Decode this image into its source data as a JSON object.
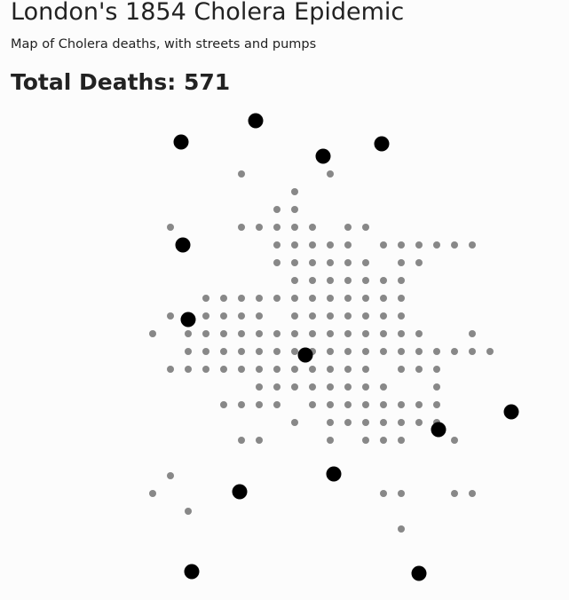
{
  "header": {
    "title": "London's 1854 Cholera Epidemic",
    "subtitle": "Map of Cholera deaths, with streets and pumps",
    "total_label": "Total Deaths:",
    "total_value": "571"
  },
  "map": {
    "colors": {
      "background": "#fcfcfc",
      "death_marker": "#888888",
      "pump_marker": "#000000"
    },
    "death_grid_cells": [
      [
        13,
        2
      ],
      [
        18,
        2
      ],
      [
        16,
        3
      ],
      [
        15,
        4
      ],
      [
        16,
        4
      ],
      [
        9,
        5
      ],
      [
        13,
        5
      ],
      [
        14,
        5
      ],
      [
        15,
        5
      ],
      [
        16,
        5
      ],
      [
        17,
        5
      ],
      [
        19,
        5
      ],
      [
        20,
        5
      ],
      [
        15,
        6
      ],
      [
        16,
        6
      ],
      [
        17,
        6
      ],
      [
        18,
        6
      ],
      [
        19,
        6
      ],
      [
        21,
        6
      ],
      [
        22,
        6
      ],
      [
        23,
        6
      ],
      [
        24,
        6
      ],
      [
        25,
        6
      ],
      [
        26,
        6
      ],
      [
        15,
        7
      ],
      [
        16,
        7
      ],
      [
        17,
        7
      ],
      [
        18,
        7
      ],
      [
        19,
        7
      ],
      [
        20,
        7
      ],
      [
        22,
        7
      ],
      [
        23,
        7
      ],
      [
        16,
        8
      ],
      [
        17,
        8
      ],
      [
        18,
        8
      ],
      [
        19,
        8
      ],
      [
        20,
        8
      ],
      [
        21,
        8
      ],
      [
        22,
        8
      ],
      [
        11,
        9
      ],
      [
        12,
        9
      ],
      [
        13,
        9
      ],
      [
        14,
        9
      ],
      [
        15,
        9
      ],
      [
        16,
        9
      ],
      [
        17,
        9
      ],
      [
        18,
        9
      ],
      [
        19,
        9
      ],
      [
        20,
        9
      ],
      [
        21,
        9
      ],
      [
        22,
        9
      ],
      [
        9,
        10
      ],
      [
        10,
        10
      ],
      [
        11,
        10
      ],
      [
        12,
        10
      ],
      [
        13,
        10
      ],
      [
        14,
        10
      ],
      [
        16,
        10
      ],
      [
        17,
        10
      ],
      [
        18,
        10
      ],
      [
        19,
        10
      ],
      [
        20,
        10
      ],
      [
        21,
        10
      ],
      [
        22,
        10
      ],
      [
        8,
        11
      ],
      [
        10,
        11
      ],
      [
        11,
        11
      ],
      [
        12,
        11
      ],
      [
        13,
        11
      ],
      [
        14,
        11
      ],
      [
        15,
        11
      ],
      [
        16,
        11
      ],
      [
        17,
        11
      ],
      [
        18,
        11
      ],
      [
        19,
        11
      ],
      [
        20,
        11
      ],
      [
        21,
        11
      ],
      [
        22,
        11
      ],
      [
        23,
        11
      ],
      [
        26,
        11
      ],
      [
        10,
        12
      ],
      [
        11,
        12
      ],
      [
        12,
        12
      ],
      [
        13,
        12
      ],
      [
        14,
        12
      ],
      [
        15,
        12
      ],
      [
        16,
        12
      ],
      [
        17,
        12
      ],
      [
        18,
        12
      ],
      [
        19,
        12
      ],
      [
        20,
        12
      ],
      [
        21,
        12
      ],
      [
        22,
        12
      ],
      [
        23,
        12
      ],
      [
        24,
        12
      ],
      [
        25,
        12
      ],
      [
        26,
        12
      ],
      [
        27,
        12
      ],
      [
        9,
        13
      ],
      [
        10,
        13
      ],
      [
        11,
        13
      ],
      [
        12,
        13
      ],
      [
        13,
        13
      ],
      [
        14,
        13
      ],
      [
        15,
        13
      ],
      [
        16,
        13
      ],
      [
        17,
        13
      ],
      [
        18,
        13
      ],
      [
        19,
        13
      ],
      [
        20,
        13
      ],
      [
        22,
        13
      ],
      [
        23,
        13
      ],
      [
        24,
        13
      ],
      [
        14,
        14
      ],
      [
        15,
        14
      ],
      [
        16,
        14
      ],
      [
        17,
        14
      ],
      [
        18,
        14
      ],
      [
        19,
        14
      ],
      [
        20,
        14
      ],
      [
        21,
        14
      ],
      [
        24,
        14
      ],
      [
        12,
        15
      ],
      [
        13,
        15
      ],
      [
        14,
        15
      ],
      [
        15,
        15
      ],
      [
        17,
        15
      ],
      [
        18,
        15
      ],
      [
        19,
        15
      ],
      [
        20,
        15
      ],
      [
        21,
        15
      ],
      [
        22,
        15
      ],
      [
        23,
        15
      ],
      [
        24,
        15
      ],
      [
        16,
        16
      ],
      [
        18,
        16
      ],
      [
        19,
        16
      ],
      [
        20,
        16
      ],
      [
        21,
        16
      ],
      [
        22,
        16
      ],
      [
        23,
        16
      ],
      [
        24,
        16
      ],
      [
        13,
        17
      ],
      [
        14,
        17
      ],
      [
        18,
        17
      ],
      [
        20,
        17
      ],
      [
        21,
        17
      ],
      [
        22,
        17
      ],
      [
        25,
        17
      ],
      [
        9,
        19
      ],
      [
        8,
        20
      ],
      [
        21,
        20
      ],
      [
        22,
        20
      ],
      [
        25,
        20
      ],
      [
        26,
        20
      ],
      [
        10,
        21
      ],
      [
        22,
        22
      ]
    ],
    "pump_grid_cells": [
      [
        13.8,
        -1.0
      ],
      [
        9.6,
        0.2
      ],
      [
        17.6,
        1.0
      ],
      [
        20.9,
        0.3
      ],
      [
        9.7,
        6.0
      ],
      [
        10.0,
        10.2
      ],
      [
        16.6,
        12.2
      ],
      [
        24.1,
        16.4
      ],
      [
        28.2,
        15.4
      ],
      [
        18.2,
        18.9
      ],
      [
        12.9,
        19.9
      ],
      [
        10.2,
        24.4
      ],
      [
        23.0,
        24.5
      ]
    ]
  }
}
